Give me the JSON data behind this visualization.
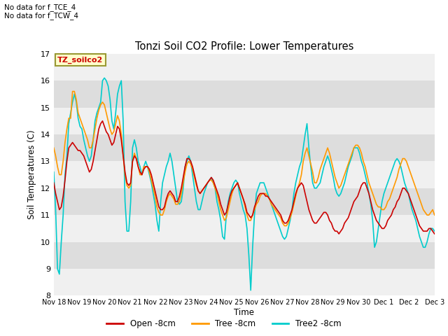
{
  "title": "Tonzi Soil CO2 Profile: Lower Temperatures",
  "ylabel": "Soil Temperatures (C)",
  "xlabel": "Time",
  "top_left_text": "No data for f_TCE_4\nNo data for f_TCW_4",
  "legend_box_text": "TZ_soilco2",
  "ylim": [
    8.0,
    17.0
  ],
  "yticks": [
    8.0,
    9.0,
    10.0,
    11.0,
    12.0,
    13.0,
    14.0,
    15.0,
    16.0,
    17.0
  ],
  "xtick_labels": [
    "Nov 18",
    "Nov 19",
    "Nov 20",
    "Nov 21",
    "Nov 22",
    "Nov 23",
    "Nov 24",
    "Nov 25",
    "Nov 26",
    "Nov 27",
    "Nov 28",
    "Nov 29",
    "Nov 30",
    "Dec 1",
    "Dec 2",
    "Dec 3"
  ],
  "colors": {
    "open": "#cc0000",
    "tree": "#ff9900",
    "tree2": "#00cccc",
    "bg_gray": "#dddddd",
    "bg_white": "#f0f0f0",
    "legend_box_bg": "#ffffcc",
    "legend_box_border": "#999933"
  },
  "line_widths": {
    "open": 1.2,
    "tree": 1.2,
    "tree2": 1.2
  },
  "legend_labels": [
    "Open -8cm",
    "Tree -8cm",
    "Tree2 -8cm"
  ],
  "open_data": [
    12.2,
    11.8,
    11.5,
    11.2,
    11.3,
    11.7,
    12.3,
    13.0,
    13.5,
    13.6,
    13.7,
    13.6,
    13.5,
    13.4,
    13.4,
    13.3,
    13.2,
    13.0,
    12.8,
    12.6,
    12.7,
    13.0,
    13.4,
    13.8,
    14.2,
    14.4,
    14.5,
    14.3,
    14.1,
    14.0,
    13.8,
    13.6,
    13.7,
    14.0,
    14.3,
    14.2,
    13.8,
    13.2,
    12.6,
    12.2,
    12.1,
    12.2,
    13.0,
    13.2,
    13.1,
    12.8,
    12.6,
    12.5,
    12.7,
    12.8,
    12.8,
    12.7,
    12.5,
    12.2,
    11.9,
    11.6,
    11.3,
    11.2,
    11.2,
    11.3,
    11.6,
    11.8,
    11.9,
    11.8,
    11.7,
    11.5,
    11.5,
    11.7,
    12.0,
    12.4,
    12.8,
    13.1,
    13.1,
    13.0,
    12.8,
    12.5,
    12.2,
    11.9,
    11.8,
    11.9,
    12.0,
    12.1,
    12.2,
    12.3,
    12.4,
    12.3,
    12.1,
    11.9,
    11.7,
    11.4,
    11.2,
    11.0,
    11.1,
    11.4,
    11.7,
    11.9,
    12.0,
    12.1,
    12.2,
    12.0,
    11.8,
    11.6,
    11.4,
    11.1,
    11.0,
    10.9,
    11.0,
    11.3,
    11.5,
    11.7,
    11.8,
    11.8,
    11.8,
    11.7,
    11.7,
    11.6,
    11.5,
    11.4,
    11.3,
    11.2,
    11.1,
    11.0,
    10.8,
    10.7,
    10.7,
    10.8,
    11.0,
    11.2,
    11.5,
    11.8,
    12.0,
    12.1,
    12.2,
    12.1,
    11.8,
    11.5,
    11.2,
    11.0,
    10.8,
    10.7,
    10.7,
    10.8,
    10.9,
    11.0,
    11.1,
    11.1,
    11.0,
    10.8,
    10.7,
    10.5,
    10.4,
    10.4,
    10.3,
    10.4,
    10.5,
    10.7,
    10.8,
    10.9,
    11.1,
    11.3,
    11.5,
    11.6,
    11.7,
    11.9,
    12.1,
    12.2,
    12.2,
    12.0,
    11.8,
    11.5,
    11.2,
    11.0,
    10.8,
    10.7,
    10.6,
    10.5,
    10.5,
    10.6,
    10.8,
    10.9,
    11.0,
    11.2,
    11.3,
    11.5,
    11.6,
    11.8,
    12.0,
    12.0,
    11.9,
    11.8,
    11.6,
    11.4,
    11.2,
    11.0,
    10.8,
    10.6,
    10.5,
    10.4,
    10.4,
    10.4,
    10.5,
    10.5,
    10.4,
    10.3
  ],
  "tree_data": [
    13.5,
    13.2,
    12.8,
    12.5,
    12.5,
    13.0,
    13.7,
    14.2,
    14.6,
    14.6,
    15.6,
    15.6,
    15.3,
    14.8,
    14.6,
    14.4,
    14.2,
    14.0,
    13.8,
    13.5,
    13.5,
    13.8,
    14.2,
    14.6,
    14.9,
    15.1,
    15.2,
    15.1,
    14.8,
    14.5,
    14.2,
    14.0,
    14.1,
    14.4,
    14.7,
    14.5,
    14.0,
    13.2,
    12.5,
    12.1,
    12.0,
    12.1,
    13.0,
    13.3,
    13.1,
    12.8,
    12.5,
    12.5,
    12.8,
    12.8,
    12.8,
    12.6,
    12.3,
    12.0,
    11.7,
    11.3,
    11.1,
    11.0,
    11.0,
    11.2,
    11.5,
    11.7,
    11.8,
    11.7,
    11.6,
    11.4,
    11.4,
    11.5,
    11.8,
    12.2,
    12.6,
    12.9,
    13.0,
    12.9,
    12.7,
    12.4,
    12.1,
    11.9,
    11.8,
    11.9,
    12.0,
    12.1,
    12.2,
    12.3,
    12.3,
    12.2,
    12.0,
    11.8,
    11.5,
    11.2,
    11.0,
    10.8,
    10.9,
    11.2,
    11.5,
    11.8,
    12.0,
    12.1,
    12.2,
    12.0,
    11.8,
    11.6,
    11.3,
    11.0,
    10.8,
    10.8,
    11.0,
    11.2,
    11.4,
    11.5,
    11.7,
    11.8,
    11.8,
    11.8,
    11.7,
    11.6,
    11.4,
    11.3,
    11.2,
    11.1,
    11.0,
    10.9,
    10.7,
    10.6,
    10.6,
    10.7,
    10.9,
    11.1,
    11.4,
    11.7,
    12.0,
    12.2,
    12.5,
    13.0,
    13.3,
    13.5,
    13.2,
    12.9,
    12.6,
    12.2,
    12.2,
    12.4,
    12.7,
    12.9,
    13.1,
    13.3,
    13.5,
    13.3,
    13.0,
    12.7,
    12.4,
    12.2,
    12.0,
    12.1,
    12.3,
    12.5,
    12.7,
    12.9,
    13.1,
    13.3,
    13.5,
    13.6,
    13.6,
    13.5,
    13.3,
    13.0,
    12.8,
    12.5,
    12.2,
    12.0,
    11.8,
    11.6,
    11.4,
    11.3,
    11.3,
    11.2,
    11.2,
    11.3,
    11.5,
    11.6,
    11.8,
    12.0,
    12.2,
    12.4,
    12.7,
    12.9,
    13.1,
    13.1,
    13.0,
    12.8,
    12.6,
    12.4,
    12.2,
    12.0,
    11.8,
    11.6,
    11.4,
    11.2,
    11.1,
    11.0,
    11.0,
    11.1,
    11.2,
    11.0
  ],
  "tree2_data": [
    12.6,
    11.2,
    9.0,
    8.8,
    10.0,
    11.0,
    12.5,
    13.2,
    14.4,
    14.8,
    15.2,
    15.5,
    15.2,
    14.6,
    14.3,
    14.2,
    13.8,
    13.5,
    13.2,
    13.0,
    13.2,
    13.8,
    14.5,
    14.8,
    15.0,
    15.2,
    16.0,
    16.1,
    16.0,
    15.8,
    15.3,
    14.5,
    14.2,
    14.8,
    15.5,
    15.8,
    16.0,
    14.5,
    11.5,
    10.4,
    10.4,
    11.5,
    13.5,
    13.8,
    13.5,
    13.0,
    12.8,
    12.5,
    12.8,
    13.0,
    12.8,
    12.5,
    12.2,
    11.8,
    11.4,
    10.8,
    10.4,
    11.5,
    12.2,
    12.5,
    12.8,
    13.0,
    13.3,
    13.0,
    12.5,
    12.0,
    11.5,
    11.4,
    11.5,
    12.0,
    12.8,
    13.0,
    13.2,
    13.0,
    12.5,
    12.0,
    11.5,
    11.2,
    11.2,
    11.5,
    11.8,
    12.0,
    12.2,
    12.3,
    12.4,
    12.2,
    12.0,
    11.5,
    11.2,
    10.8,
    10.2,
    10.1,
    11.0,
    11.5,
    11.8,
    12.0,
    12.2,
    12.3,
    12.2,
    11.8,
    11.5,
    11.2,
    11.0,
    10.5,
    9.5,
    8.2,
    9.8,
    11.0,
    11.8,
    12.0,
    12.2,
    12.2,
    12.2,
    12.0,
    11.8,
    11.6,
    11.4,
    11.2,
    11.0,
    10.8,
    10.6,
    10.4,
    10.2,
    10.1,
    10.2,
    10.5,
    10.8,
    11.2,
    11.8,
    12.2,
    12.5,
    12.8,
    13.0,
    13.5,
    14.0,
    14.4,
    13.5,
    12.8,
    12.2,
    12.0,
    12.0,
    12.1,
    12.2,
    12.5,
    12.8,
    13.0,
    13.2,
    13.0,
    12.7,
    12.4,
    12.0,
    11.8,
    11.7,
    11.8,
    12.0,
    12.2,
    12.5,
    12.8,
    13.0,
    13.2,
    13.5,
    13.5,
    13.5,
    13.3,
    13.0,
    12.8,
    12.5,
    12.2,
    11.8,
    11.4,
    10.8,
    9.8,
    10.0,
    10.5,
    11.0,
    11.5,
    11.8,
    12.0,
    12.2,
    12.4,
    12.6,
    12.8,
    13.0,
    13.1,
    13.0,
    12.8,
    12.5,
    12.2,
    12.0,
    11.8,
    11.5,
    11.2,
    11.0,
    10.8,
    10.5,
    10.2,
    10.0,
    9.8,
    9.8,
    10.0,
    10.3,
    10.5,
    10.5,
    10.4
  ]
}
